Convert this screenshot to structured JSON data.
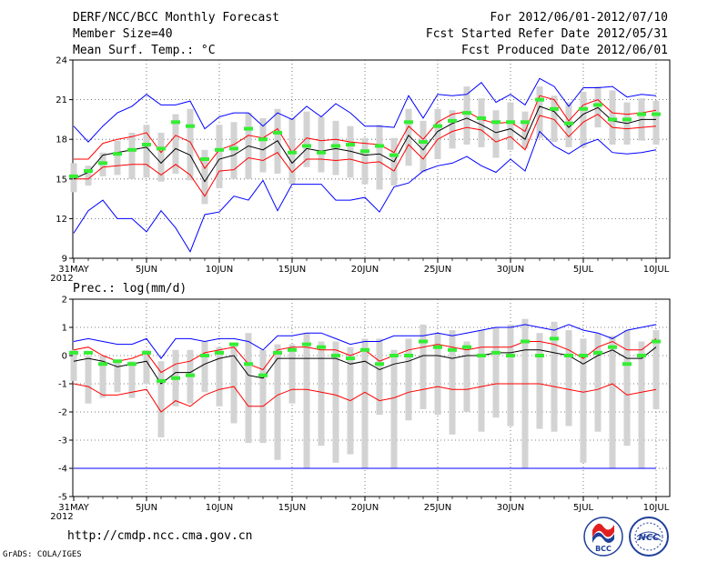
{
  "header": {
    "title": "DERF/NCC/BCC Monthly Forecast",
    "member_size": "Member Size=40",
    "variable": "Mean Surf. Temp.: °C",
    "period": "For 2012/06/01-2012/07/10",
    "fcst_start": "Fcst Started Refer Date 2012/05/31",
    "fcst_produced": "Fcst Produced Date 2012/06/01"
  },
  "footer": {
    "url": "http://cmdp.ncc.cma.gov.cn",
    "credit": "GrADS: COLA/IGES"
  },
  "logos": {
    "left_text": "BCC",
    "right_text": "NCC"
  },
  "colors": {
    "envelope": "#0000ff",
    "spread": "#ff0000",
    "mean": "#000000",
    "box": "#d3d3d3",
    "median": "#33ee33"
  },
  "chart_data": [
    {
      "type": "line",
      "title": "Mean Surf. Temp.: °C",
      "ylabel": "°C",
      "ylim": [
        9,
        24
      ],
      "yticks": [
        9,
        12,
        15,
        18,
        21,
        24
      ],
      "x_start_label": "31MAY",
      "year_label": "2012",
      "xticks": [
        "31MAY",
        "5JUN",
        "10JUN",
        "15JUN",
        "20JUN",
        "25JUN",
        "30JUN",
        "5JUL",
        "10JUL"
      ],
      "xtick_index": [
        0,
        5,
        10,
        15,
        20,
        25,
        30,
        35,
        40
      ],
      "x": [
        0,
        1,
        2,
        3,
        4,
        5,
        6,
        7,
        8,
        9,
        10,
        11,
        12,
        13,
        14,
        15,
        16,
        17,
        18,
        19,
        20,
        21,
        22,
        23,
        24,
        25,
        26,
        27,
        28,
        29,
        30,
        31,
        32,
        33,
        34,
        35,
        36,
        37,
        38,
        39,
        40
      ],
      "series": [
        {
          "name": "max",
          "values": [
            19.0,
            17.8,
            19.0,
            20.0,
            20.5,
            21.4,
            20.6,
            20.6,
            20.9,
            18.8,
            19.7,
            20.0,
            20.0,
            19.0,
            20.0,
            19.5,
            20.5,
            19.7,
            20.7,
            20.0,
            19.0,
            19.0,
            18.9,
            21.3,
            19.6,
            21.4,
            21.3,
            21.4,
            22.3,
            20.8,
            21.4,
            20.6,
            22.6,
            22.0,
            20.5,
            21.9,
            21.9,
            22.0,
            21.2,
            21.4,
            21.3
          ]
        },
        {
          "name": "mean+1sd",
          "values": [
            16.5,
            16.5,
            17.7,
            18.0,
            18.2,
            18.5,
            17.0,
            18.3,
            17.8,
            15.8,
            17.2,
            17.6,
            18.3,
            18.1,
            18.8,
            17.0,
            18.1,
            17.9,
            18.0,
            17.8,
            17.7,
            17.6,
            17.0,
            19.0,
            18.0,
            19.3,
            19.9,
            20.1,
            19.5,
            19.2,
            19.3,
            18.6,
            21.3,
            21.0,
            19.4,
            20.6,
            21.0,
            20.0,
            19.9,
            20.0,
            20.2
          ]
        },
        {
          "name": "mean",
          "values": [
            15.0,
            15.5,
            16.8,
            17.0,
            17.2,
            17.4,
            16.2,
            17.3,
            16.8,
            14.8,
            16.5,
            16.8,
            17.5,
            17.2,
            17.9,
            16.2,
            17.3,
            17.1,
            17.3,
            17.1,
            16.8,
            16.9,
            16.3,
            18.3,
            17.2,
            18.6,
            19.2,
            19.6,
            19.1,
            18.5,
            18.8,
            18.0,
            20.5,
            20.1,
            18.9,
            19.9,
            20.4,
            19.4,
            19.2,
            19.5,
            19.5
          ]
        },
        {
          "name": "mean-1sd",
          "values": [
            15.0,
            15.0,
            15.9,
            16.0,
            16.1,
            16.1,
            15.3,
            16.1,
            15.3,
            13.7,
            15.6,
            15.7,
            16.6,
            16.4,
            17.0,
            15.5,
            16.5,
            16.5,
            16.4,
            16.5,
            16.2,
            16.3,
            15.6,
            17.6,
            16.5,
            18.0,
            18.6,
            18.9,
            18.7,
            17.8,
            18.2,
            17.2,
            19.8,
            19.5,
            18.2,
            19.3,
            19.9,
            18.9,
            18.8,
            18.9,
            19.0
          ]
        },
        {
          "name": "min",
          "values": [
            10.9,
            12.6,
            13.4,
            12.0,
            12.0,
            11.0,
            12.6,
            11.3,
            9.5,
            12.3,
            12.5,
            13.7,
            13.4,
            14.9,
            12.6,
            14.6,
            14.6,
            14.6,
            13.4,
            13.4,
            13.6,
            12.5,
            14.4,
            14.7,
            15.6,
            16.0,
            16.2,
            16.7,
            16.0,
            15.5,
            16.5,
            15.6,
            18.6,
            17.5,
            16.9,
            17.6,
            18.0,
            17.0,
            16.9,
            17.0,
            17.2
          ]
        },
        {
          "name": "ensemble_median",
          "values": [
            15.2,
            15.6,
            16.2,
            16.9,
            17.2,
            17.6,
            17.3,
            19.3,
            19.0,
            16.5,
            17.2,
            17.3,
            18.8,
            18.0,
            18.5,
            17.0,
            17.5,
            17.0,
            17.5,
            17.6,
            17.1,
            17.5,
            16.8,
            19.3,
            17.8,
            19.0,
            19.4,
            20.0,
            19.6,
            19.3,
            19.3,
            19.3,
            21.0,
            20.3,
            19.2,
            20.3,
            20.6,
            19.5,
            19.5,
            19.9,
            19.9
          ]
        },
        {
          "name": "box_upper",
          "values": [
            16.2,
            16.0,
            17.0,
            17.9,
            18.5,
            19.1,
            18.5,
            19.9,
            20.3,
            17.2,
            19.1,
            19.3,
            20.0,
            19.6,
            20.3,
            19.6,
            20.1,
            19.7,
            19.4,
            19.0,
            18.1,
            19.1,
            18.1,
            20.3,
            19.4,
            20.3,
            20.2,
            22.0,
            21.1,
            20.2,
            20.8,
            20.1,
            22.0,
            21.3,
            20.8,
            21.6,
            22.0,
            21.7,
            20.8,
            21.1,
            20.9
          ]
        },
        {
          "name": "box_lower",
          "values": [
            14.0,
            14.5,
            15.2,
            15.3,
            15.0,
            15.1,
            14.8,
            15.4,
            14.9,
            13.1,
            14.3,
            15.0,
            15.0,
            15.5,
            15.4,
            14.6,
            15.9,
            15.5,
            15.3,
            15.1,
            14.6,
            14.2,
            14.5,
            16.0,
            15.5,
            16.5,
            17.3,
            17.6,
            17.4,
            16.6,
            17.2,
            17.3,
            18.1,
            17.8,
            17.4,
            17.4,
            18.9,
            17.6,
            17.6,
            17.9,
            17.6
          ]
        }
      ]
    },
    {
      "type": "line",
      "title": "Prec.: log(mm/d)",
      "ylabel": "log(mm/d)",
      "ylim": [
        -5,
        2
      ],
      "yticks": [
        -5,
        -4,
        -3,
        -2,
        -1,
        0,
        1,
        2
      ],
      "x_start_label": "31MAY",
      "year_label": "2012",
      "xticks": [
        "31MAY",
        "5JUN",
        "10JUN",
        "15JUN",
        "20JUN",
        "25JUN",
        "30JUN",
        "5JUL",
        "10JUL"
      ],
      "xtick_index": [
        0,
        5,
        10,
        15,
        20,
        25,
        30,
        35,
        40
      ],
      "x": [
        0,
        1,
        2,
        3,
        4,
        5,
        6,
        7,
        8,
        9,
        10,
        11,
        12,
        13,
        14,
        15,
        16,
        17,
        18,
        19,
        20,
        21,
        22,
        23,
        24,
        25,
        26,
        27,
        28,
        29,
        30,
        31,
        32,
        33,
        34,
        35,
        36,
        37,
        38,
        39,
        40
      ],
      "series": [
        {
          "name": "max",
          "values": [
            0.5,
            0.6,
            0.5,
            0.4,
            0.4,
            0.6,
            -0.1,
            0.6,
            0.6,
            0.5,
            0.6,
            0.6,
            0.5,
            0.2,
            0.7,
            0.7,
            0.8,
            0.8,
            0.6,
            0.4,
            0.5,
            0.5,
            0.7,
            0.7,
            0.7,
            0.8,
            0.7,
            0.8,
            0.9,
            1.0,
            1.0,
            1.1,
            1.0,
            0.9,
            1.1,
            0.9,
            0.8,
            0.6,
            0.9,
            1.0,
            1.1
          ]
        },
        {
          "name": "mean+1sd",
          "values": [
            0.2,
            0.3,
            0.0,
            -0.2,
            -0.1,
            0.1,
            -0.6,
            -0.3,
            -0.2,
            0.1,
            0.2,
            0.3,
            -0.3,
            -0.5,
            0.2,
            0.3,
            0.3,
            0.2,
            0.2,
            0.0,
            0.2,
            -0.2,
            0.0,
            0.2,
            0.3,
            0.4,
            0.3,
            0.2,
            0.3,
            0.3,
            0.3,
            0.5,
            0.5,
            0.4,
            0.2,
            -0.1,
            0.3,
            0.5,
            0.2,
            0.2,
            0.6
          ]
        },
        {
          "name": "mean",
          "values": [
            -0.2,
            -0.1,
            -0.2,
            -0.4,
            -0.3,
            -0.2,
            -1.0,
            -0.6,
            -0.6,
            -0.3,
            -0.1,
            0.0,
            -0.7,
            -0.8,
            -0.1,
            -0.1,
            -0.1,
            -0.1,
            -0.1,
            -0.3,
            -0.2,
            -0.5,
            -0.3,
            -0.2,
            0.0,
            0.0,
            -0.1,
            0.0,
            0.0,
            0.1,
            0.1,
            0.2,
            0.2,
            0.1,
            0.0,
            -0.3,
            0.0,
            0.2,
            -0.1,
            -0.1,
            0.3
          ]
        },
        {
          "name": "mean-1sd",
          "values": [
            -1.0,
            -1.1,
            -1.4,
            -1.4,
            -1.3,
            -1.2,
            -2.0,
            -1.6,
            -1.8,
            -1.4,
            -1.2,
            -1.1,
            -1.8,
            -1.8,
            -1.4,
            -1.2,
            -1.2,
            -1.3,
            -1.4,
            -1.6,
            -1.3,
            -1.6,
            -1.5,
            -1.3,
            -1.2,
            -1.1,
            -1.2,
            -1.2,
            -1.1,
            -1.0,
            -1.0,
            -1.0,
            -1.0,
            -1.1,
            -1.2,
            -1.3,
            -1.2,
            -1.0,
            -1.4,
            -1.3,
            -1.2
          ]
        },
        {
          "name": "min",
          "values": [
            -4,
            -4,
            -4,
            -4,
            -4,
            -4,
            -4,
            -4,
            -4,
            -4,
            -4,
            -4,
            -4,
            -4,
            -4,
            -4,
            -4,
            -4,
            -4,
            -4,
            -4,
            -4,
            -4,
            -4,
            -4,
            -4,
            -4,
            -4,
            -4,
            -4,
            -4,
            -4,
            -4,
            -4,
            -4,
            -4,
            -4,
            -4,
            -4,
            -4,
            -4
          ]
        },
        {
          "name": "ensemble_median",
          "values": [
            0.1,
            0.1,
            -0.3,
            -0.2,
            -0.3,
            0.1,
            -0.9,
            -0.8,
            -0.7,
            0.0,
            0.1,
            0.4,
            -0.3,
            -0.7,
            0.1,
            0.2,
            0.4,
            0.3,
            0.0,
            -0.1,
            0.2,
            -0.3,
            0.0,
            0.0,
            0.5,
            0.3,
            0.2,
            0.3,
            0.0,
            0.1,
            0.0,
            0.5,
            0.0,
            0.6,
            0.0,
            0.0,
            0.1,
            0.3,
            -0.3,
            0.0,
            0.5
          ]
        },
        {
          "name": "box_upper",
          "values": [
            0.2,
            0.0,
            0.0,
            -0.2,
            -0.2,
            0.2,
            -0.2,
            0.2,
            0.2,
            0.5,
            0.3,
            0.4,
            0.8,
            0.2,
            0.4,
            0.4,
            0.8,
            0.5,
            0.5,
            0.3,
            0.6,
            0.6,
            0.2,
            0.6,
            1.1,
            0.8,
            0.9,
            0.5,
            0.9,
            1.0,
            1.1,
            1.3,
            0.8,
            1.2,
            0.9,
            0.6,
            0.8,
            0.7,
            0.9,
            0.5,
            0.9
          ]
        },
        {
          "name": "box_lower",
          "values": [
            -0.9,
            -1.7,
            -1.5,
            -1.3,
            -1.5,
            -1.0,
            -2.9,
            -1.8,
            -1.7,
            -1.3,
            -1.8,
            -2.4,
            -3.1,
            -3.1,
            -3.7,
            -1.7,
            -4.0,
            -3.2,
            -3.8,
            -3.5,
            -4.0,
            -2.1,
            -4.0,
            -2.3,
            -1.9,
            -2.1,
            -2.8,
            -2.0,
            -2.7,
            -2.2,
            -2.5,
            -4.0,
            -2.6,
            -2.7,
            -2.5,
            -3.8,
            -2.7,
            -4.0,
            -3.2,
            -4.0,
            -1.9
          ]
        }
      ]
    }
  ]
}
